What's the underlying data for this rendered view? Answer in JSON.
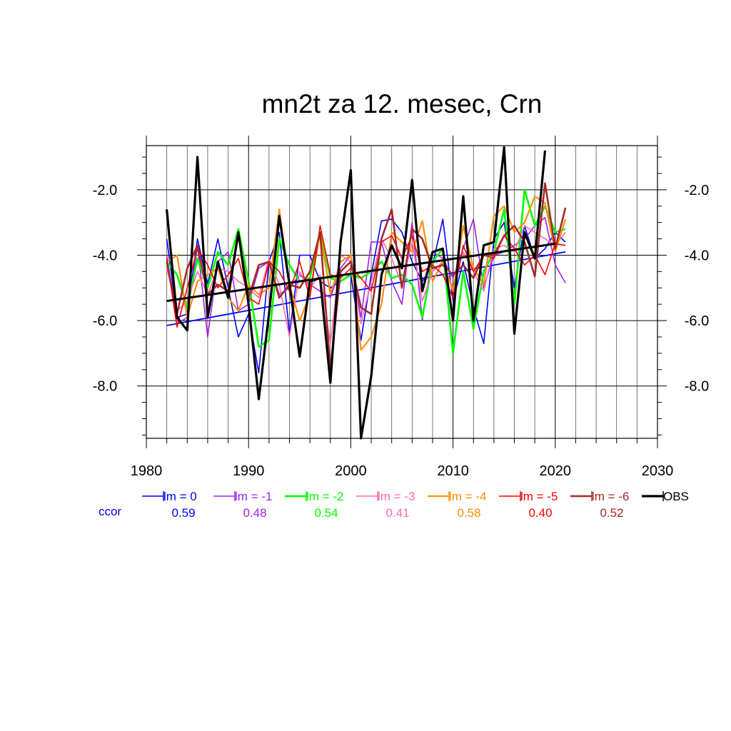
{
  "chart_data": {
    "type": "line",
    "title": "mn2t za 12. mesec, Crn",
    "xlabel": "",
    "ylabel": "",
    "xlim": [
      1980,
      2030
    ],
    "ylim": [
      -9.6,
      -0.65
    ],
    "xticks": [
      1980,
      1990,
      2000,
      2010,
      2020,
      2030
    ],
    "xtick_labels": [
      "1980",
      "1990",
      "2000",
      "2010",
      "2020",
      "2030"
    ],
    "yticks": [
      -8.0,
      -6.0,
      -4.0,
      -2.0
    ],
    "ytick_labels": [
      "-8.0",
      "-6.0",
      "-4.0",
      "-2.0"
    ],
    "grid": true,
    "legend_position": "bottom",
    "ccor_label": "ccor",
    "series": [
      {
        "name": "lm = 0",
        "color": "#0000ff",
        "width": 1.6,
        "ccor": "0.59",
        "x": [
          1982,
          1983,
          1984,
          1985,
          1986,
          1987,
          1988,
          1989,
          1990,
          1991,
          1992,
          1993,
          1994,
          1995,
          1996,
          1997,
          1998,
          1999,
          2000,
          2001,
          2002,
          2003,
          2004,
          2005,
          2006,
          2007,
          2008,
          2009,
          2010,
          2011,
          2012,
          2013,
          2014,
          2015,
          2016,
          2017,
          2018,
          2019,
          2020,
          2021
        ],
        "values": [
          -3.5,
          -5.9,
          -5.8,
          -3.5,
          -4.9,
          -3.5,
          -5.0,
          -6.5,
          -5.8,
          -7.6,
          -4.2,
          -3.3,
          -6.4,
          -4.0,
          -4.0,
          -4.8,
          -5.0,
          -4.8,
          -4.6,
          -6.6,
          -4.6,
          -2.95,
          -2.9,
          -3.3,
          -4.2,
          -4.8,
          -4.3,
          -2.9,
          -5.4,
          -4.2,
          -5.6,
          -6.7,
          -3.5,
          -3.0,
          -5.0,
          -3.1,
          -4.1,
          -3.8,
          -3.3,
          -3.6
        ],
        "trend": [
          [
            1982,
            -6.15
          ],
          [
            2021,
            -3.9
          ]
        ]
      },
      {
        "name": "lm = -1",
        "color": "#a020f0",
        "width": 1.6,
        "ccor": "0.48",
        "x": [
          1982,
          1983,
          1984,
          1985,
          1986,
          1987,
          1988,
          1989,
          1990,
          1991,
          1992,
          1993,
          1994,
          1995,
          1996,
          1997,
          1998,
          1999,
          2000,
          2001,
          2002,
          2003,
          2004,
          2005,
          2006,
          2007,
          2008,
          2009,
          2010,
          2011,
          2012,
          2013,
          2014,
          2015,
          2016,
          2017,
          2018,
          2019,
          2020,
          2021
        ],
        "values": [
          -4.0,
          -6.1,
          -5.9,
          -3.7,
          -6.5,
          -4.2,
          -3.9,
          -5.7,
          -5.5,
          -4.4,
          -4.2,
          -5.2,
          -5.0,
          -4.6,
          -4.9,
          -5.1,
          -5.3,
          -4.4,
          -4.0,
          -5.9,
          -3.6,
          -3.6,
          -4.8,
          -5.5,
          -3.0,
          -6.0,
          -3.9,
          -4.1,
          -4.7,
          -3.8,
          -2.9,
          -5.0,
          -4.0,
          -3.9,
          -3.7,
          -3.5,
          -3.1,
          -2.85,
          -4.3,
          -4.85
        ]
      },
      {
        "name": "lm = -2",
        "color": "#00ff00",
        "width": 2.6,
        "ccor": "0.54",
        "x": [
          1982,
          1983,
          1984,
          1985,
          1986,
          1987,
          1988,
          1989,
          1990,
          1991,
          1992,
          1993,
          1994,
          1995,
          1996,
          1997,
          1998,
          1999,
          2000,
          2001,
          2002,
          2003,
          2004,
          2005,
          2006,
          2007,
          2008,
          2009,
          2010,
          2011,
          2012,
          2013,
          2014,
          2015,
          2016,
          2017,
          2018,
          2019,
          2020,
          2021
        ],
        "values": [
          -4.2,
          -4.6,
          -5.6,
          -4.1,
          -5.0,
          -3.9,
          -4.3,
          -3.2,
          -4.8,
          -6.8,
          -6.6,
          -3.5,
          -4.3,
          -4.8,
          -4.7,
          -3.3,
          -4.7,
          -4.8,
          -4.6,
          -4.7,
          -4.5,
          -4.2,
          -4.7,
          -4.6,
          -4.9,
          -5.9,
          -4.2,
          -3.8,
          -7.0,
          -4.5,
          -6.25,
          -4.5,
          -3.9,
          -2.6,
          -5.5,
          -2.0,
          -3.1,
          -2.5,
          -3.3,
          -3.2
        ]
      },
      {
        "name": "lm = -3",
        "color": "#ff69b4",
        "width": 1.6,
        "ccor": "0.41",
        "x": [
          1982,
          1983,
          1984,
          1985,
          1986,
          1987,
          1988,
          1989,
          1990,
          1991,
          1992,
          1993,
          1994,
          1995,
          1996,
          1997,
          1998,
          1999,
          2000,
          2001,
          2002,
          2003,
          2004,
          2005,
          2006,
          2007,
          2008,
          2009,
          2010,
          2011,
          2012,
          2013,
          2014,
          2015,
          2016,
          2017,
          2018,
          2019,
          2020,
          2021
        ],
        "values": [
          -4.4,
          -5.7,
          -5.4,
          -4.5,
          -5.2,
          -4.4,
          -4.5,
          -4.8,
          -5.0,
          -5.3,
          -4.1,
          -4.9,
          -6.5,
          -4.5,
          -5.0,
          -4.6,
          -6.7,
          -4.0,
          -4.2,
          -6.1,
          -4.8,
          -3.5,
          -4.1,
          -4.9,
          -3.6,
          -5.4,
          -4.5,
          -4.2,
          -5.0,
          -3.9,
          -4.5,
          -5.1,
          -3.8,
          -3.7,
          -3.9,
          -3.1,
          -3.3,
          -3.5,
          -3.7,
          -3.3
        ]
      },
      {
        "name": "lm = -4",
        "color": "#ff8c00",
        "width": 2.1,
        "ccor": "0.58",
        "x": [
          1982,
          1983,
          1984,
          1985,
          1986,
          1987,
          1988,
          1989,
          1990,
          1991,
          1992,
          1993,
          1994,
          1995,
          1996,
          1997,
          1998,
          1999,
          2000,
          2001,
          2002,
          2003,
          2004,
          2005,
          2006,
          2007,
          2008,
          2009,
          2010,
          2011,
          2012,
          2013,
          2014,
          2015,
          2016,
          2017,
          2018,
          2019,
          2020,
          2021
        ],
        "values": [
          -4.2,
          -4.0,
          -5.9,
          -4.8,
          -4.6,
          -4.4,
          -5.3,
          -5.7,
          -4.9,
          -5.2,
          -5.0,
          -2.6,
          -4.9,
          -6.0,
          -5.2,
          -3.3,
          -5.2,
          -4.2,
          -4.0,
          -6.9,
          -6.5,
          -5.5,
          -3.3,
          -3.6,
          -3.9,
          -2.95,
          -4.8,
          -4.2,
          -5.1,
          -3.1,
          -4.4,
          -4.9,
          -2.8,
          -2.5,
          -3.3,
          -3.0,
          -2.2,
          -2.4,
          -3.9,
          -2.9
        ]
      },
      {
        "name": "lm = -5",
        "color": "#ff0000",
        "width": 1.6,
        "ccor": "0.40",
        "x": [
          1982,
          1983,
          1984,
          1985,
          1986,
          1987,
          1988,
          1989,
          1990,
          1991,
          1992,
          1993,
          1994,
          1995,
          1996,
          1997,
          1998,
          1999,
          2000,
          2001,
          2002,
          2003,
          2004,
          2005,
          2006,
          2007,
          2008,
          2009,
          2010,
          2011,
          2012,
          2013,
          2014,
          2015,
          2016,
          2017,
          2018,
          2019,
          2020,
          2021
        ],
        "values": [
          -4.1,
          -6.2,
          -5.0,
          -3.8,
          -4.3,
          -5.0,
          -4.6,
          -4.1,
          -5.3,
          -5.5,
          -4.2,
          -4.5,
          -5.1,
          -4.2,
          -5.3,
          -3.1,
          -4.6,
          -4.7,
          -4.4,
          -4.7,
          -5.1,
          -3.6,
          -3.4,
          -4.1,
          -3.4,
          -4.5,
          -4.3,
          -4.6,
          -5.3,
          -3.7,
          -4.5,
          -4.0,
          -4.1,
          -3.4,
          -3.8,
          -4.3,
          -4.0,
          -4.6,
          -3.65,
          -3.7
        ]
      },
      {
        "name": "lm = -6",
        "color": "#a52a2a",
        "width": 2.6,
        "ccor": "0.52",
        "x": [
          1982,
          1983,
          1984,
          1985,
          1986,
          1987,
          1988,
          1989,
          1990,
          1991,
          1992,
          1993,
          1994,
          1995,
          1996,
          1997,
          1998,
          1999,
          2000,
          2001,
          2002,
          2003,
          2004,
          2005,
          2006,
          2007,
          2008,
          2009,
          2010,
          2011,
          2012,
          2013,
          2014,
          2015,
          2016,
          2017,
          2018,
          2019,
          2020,
          2021
        ],
        "values": [
          -4.2,
          -5.8,
          -4.4,
          -3.7,
          -5.2,
          -4.9,
          -5.1,
          -3.3,
          -5.3,
          -4.3,
          -4.2,
          -5.3,
          -4.9,
          -5.0,
          -4.5,
          -3.3,
          -7.5,
          -4.5,
          -4.2,
          -5.6,
          -5.8,
          -3.5,
          -2.6,
          -5.0,
          -3.2,
          -3.5,
          -4.4,
          -4.3,
          -4.6,
          -4.3,
          -4.7,
          -4.0,
          -4.0,
          -3.4,
          -3.1,
          -3.6,
          -4.65,
          -1.8,
          -3.8,
          -2.55
        ]
      },
      {
        "name": "OBS",
        "color": "#000000",
        "width": 3.2,
        "ccor": "",
        "x": [
          1982,
          1983,
          1984,
          1985,
          1986,
          1987,
          1988,
          1989,
          1990,
          1991,
          1992,
          1993,
          1994,
          1995,
          1996,
          1997,
          1998,
          1999,
          2000,
          2001,
          2002,
          2003,
          2004,
          2005,
          2006,
          2007,
          2008,
          2009,
          2010,
          2011,
          2012,
          2013,
          2014,
          2015,
          2016,
          2017,
          2018,
          2019
        ],
        "values": [
          -2.6,
          -5.9,
          -6.3,
          -1.0,
          -5.9,
          -4.2,
          -5.3,
          -3.3,
          -5.5,
          -8.4,
          -5.8,
          -2.8,
          -4.9,
          -7.1,
          -4.8,
          -4.7,
          -7.9,
          -3.6,
          -1.4,
          -9.6,
          -7.7,
          -4.6,
          -3.7,
          -4.4,
          -1.7,
          -5.1,
          -3.9,
          -3.8,
          -6.0,
          -2.2,
          -6.0,
          -3.7,
          -3.6,
          -0.7,
          -6.4,
          -3.3,
          -4.1,
          -0.8
        ],
        "trend": [
          [
            1982,
            -5.4
          ],
          [
            2020,
            -3.65
          ]
        ]
      }
    ]
  }
}
